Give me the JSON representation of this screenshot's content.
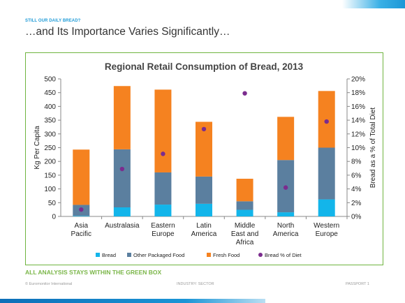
{
  "slide": {
    "kicker": "STILL OUR DAILY BREAD?",
    "title": "…and Its Importance Varies Significantly…",
    "note": "ALL ANALYSIS STAYS WITHIN THE GREEN BOX",
    "footer_left": "© Euromonitor International",
    "footer_mid": "INDUSTRY: SECTOR",
    "footer_right": "PASSPORT   1"
  },
  "colors": {
    "bread": "#13b5ea",
    "other_packaged": "#5b7f9f",
    "fresh": "#f58220",
    "bread_pct": "#7b2c8e",
    "accent_blue": "#1f9bd7",
    "box_green": "#6fb43f"
  },
  "chart_data": {
    "type": "bar",
    "stacked": true,
    "title": "Regional Retail Consumption of Bread, 2013",
    "ylabel": "Kg Per Capita",
    "y2label": "Bread as a % of Total Diet",
    "ylim": [
      0,
      500
    ],
    "y2lim": [
      0,
      20
    ],
    "yticks": [
      "0",
      "50",
      "100",
      "150",
      "200",
      "250",
      "300",
      "350",
      "400",
      "450",
      "500"
    ],
    "y2ticks": [
      "0%",
      "2%",
      "4%",
      "6%",
      "8%",
      "10%",
      "12%",
      "14%",
      "16%",
      "18%",
      "20%"
    ],
    "categories": [
      [
        "Asia",
        "Pacific"
      ],
      [
        "Australasia"
      ],
      [
        "Eastern",
        "Europe"
      ],
      [
        "Latin",
        "America"
      ],
      [
        "Middle",
        "East and",
        "Africa"
      ],
      [
        "North",
        "America"
      ],
      [
        "Western",
        "Europe"
      ]
    ],
    "series": [
      {
        "name": "Bread",
        "values": [
          2,
          33,
          43,
          46,
          24,
          15,
          62
        ]
      },
      {
        "name": "Other Packaged Food",
        "values": [
          40,
          211,
          117,
          99,
          31,
          190,
          188
        ]
      },
      {
        "name": "Fresh Food",
        "values": [
          201,
          230,
          301,
          199,
          82,
          157,
          206
        ]
      }
    ],
    "line_series": {
      "name": "Bread % of Diet",
      "axis": "right",
      "values": [
        1.0,
        6.9,
        9.1,
        12.7,
        17.9,
        4.2,
        13.8
      ]
    },
    "grid": false,
    "legend_position": "bottom"
  }
}
